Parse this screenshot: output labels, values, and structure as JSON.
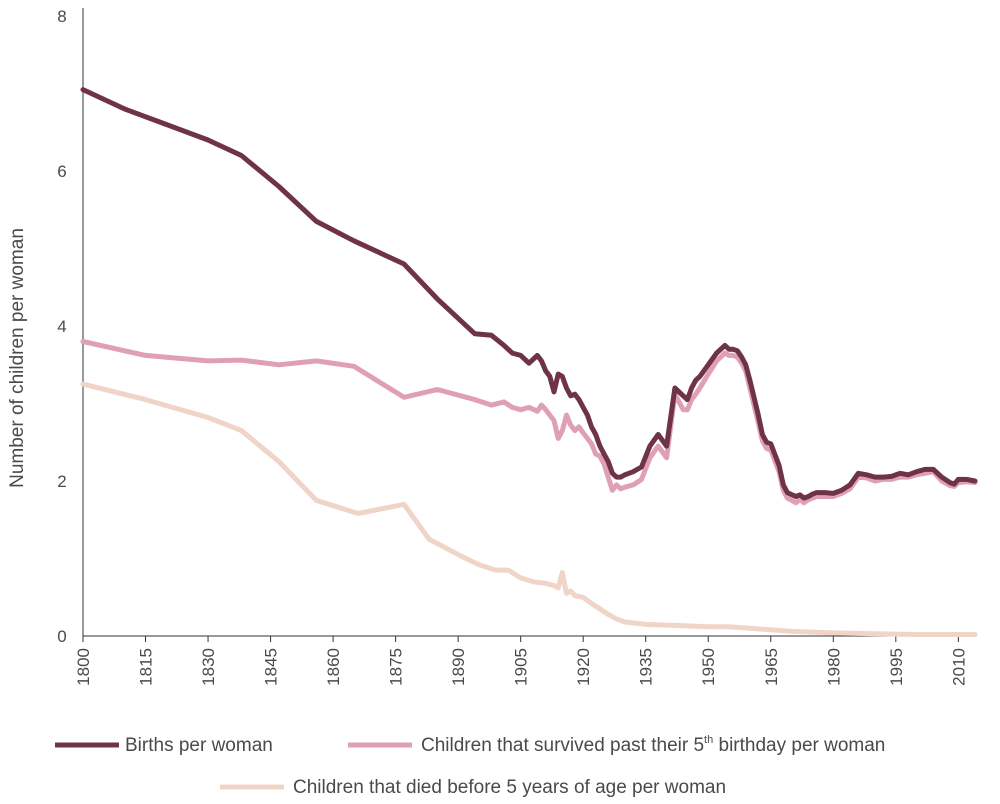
{
  "chart_data": {
    "type": "line",
    "ylabel": "Number of children per woman",
    "xlabel": "",
    "xlim": [
      1800,
      2014
    ],
    "ylim": [
      0,
      8
    ],
    "y_ticks": [
      "0",
      "2",
      "4",
      "6",
      "8"
    ],
    "x_ticks": [
      "1800",
      "1815",
      "1830",
      "1845",
      "1860",
      "1875",
      "1890",
      "1905",
      "1920",
      "1935",
      "1950",
      "1965",
      "1980",
      "1995",
      "2010"
    ],
    "grid": false,
    "legend_position": "bottom",
    "series": [
      {
        "name": "Births per woman",
        "legend_main": "Births per woman",
        "color": "#6f3347",
        "x": [
          1800,
          1810,
          1820,
          1830,
          1838,
          1847,
          1856,
          1865,
          1877,
          1885,
          1894,
          1898,
          1901,
          1903,
          1905,
          1907,
          1909,
          1910,
          1911,
          1912,
          1913,
          1914,
          1915,
          1916,
          1917,
          1918,
          1919,
          1920,
          1921,
          1922,
          1923,
          1924,
          1925,
          1926,
          1927,
          1928,
          1929,
          1930,
          1932,
          1934,
          1936,
          1938,
          1940,
          1942,
          1944,
          1945,
          1946,
          1947,
          1948,
          1950,
          1952,
          1954,
          1955,
          1956,
          1957,
          1958,
          1959,
          1960,
          1962,
          1963,
          1964,
          1965,
          1967,
          1968,
          1969,
          1971,
          1972,
          1973,
          1974,
          1975,
          1976,
          1978,
          1980,
          1982,
          1984,
          1986,
          1988,
          1990,
          1992,
          1994,
          1996,
          1998,
          2000,
          2002,
          2004,
          2006,
          2008,
          2009,
          2010,
          2012,
          2014
        ],
        "y": [
          7.05,
          6.8,
          6.6,
          6.4,
          6.2,
          5.8,
          5.35,
          5.1,
          4.8,
          4.35,
          3.9,
          3.88,
          3.75,
          3.65,
          3.62,
          3.52,
          3.62,
          3.55,
          3.42,
          3.35,
          3.15,
          3.38,
          3.35,
          3.2,
          3.1,
          3.12,
          3.05,
          2.95,
          2.85,
          2.7,
          2.6,
          2.45,
          2.35,
          2.25,
          2.1,
          2.05,
          2.05,
          2.08,
          2.12,
          2.18,
          2.45,
          2.6,
          2.45,
          3.2,
          3.1,
          3.05,
          3.2,
          3.3,
          3.35,
          3.5,
          3.65,
          3.75,
          3.7,
          3.7,
          3.68,
          3.6,
          3.5,
          3.3,
          2.85,
          2.6,
          2.5,
          2.48,
          2.2,
          1.95,
          1.85,
          1.8,
          1.82,
          1.78,
          1.8,
          1.83,
          1.85,
          1.85,
          1.84,
          1.88,
          1.95,
          2.1,
          2.08,
          2.05,
          2.05,
          2.06,
          2.1,
          2.08,
          2.12,
          2.15,
          2.15,
          2.05,
          1.98,
          1.96,
          2.02,
          2.02,
          2.0
        ]
      },
      {
        "name": "Children that survived past their 5th birthday per woman",
        "legend_main": "Children that survived past their 5",
        "legend_sup": "th",
        "legend_tail": " birthday per woman",
        "color": "#dfa0b4",
        "x": [
          1800,
          1815,
          1830,
          1838,
          1847,
          1856,
          1865,
          1877,
          1885,
          1894,
          1898,
          1901,
          1903,
          1905,
          1907,
          1909,
          1910,
          1911,
          1912,
          1913,
          1914,
          1915,
          1916,
          1917,
          1918,
          1919,
          1920,
          1921,
          1922,
          1923,
          1924,
          1925,
          1926,
          1927,
          1928,
          1929,
          1930,
          1932,
          1934,
          1936,
          1938,
          1940,
          1942,
          1944,
          1945,
          1946,
          1947,
          1948,
          1950,
          1952,
          1954,
          1955,
          1956,
          1957,
          1958,
          1959,
          1960,
          1962,
          1963,
          1964,
          1965,
          1967,
          1968,
          1969,
          1971,
          1972,
          1973,
          1974,
          1975,
          1976,
          1978,
          1980,
          1982,
          1984,
          1986,
          1988,
          1990,
          1992,
          1994,
          1996,
          1998,
          2000,
          2002,
          2004,
          2006,
          2008,
          2009,
          2010,
          2012,
          2014
        ],
        "y": [
          3.8,
          3.62,
          3.55,
          3.56,
          3.5,
          3.55,
          3.48,
          3.08,
          3.18,
          3.05,
          2.98,
          3.02,
          2.95,
          2.92,
          2.95,
          2.9,
          2.98,
          2.92,
          2.85,
          2.78,
          2.55,
          2.65,
          2.85,
          2.72,
          2.65,
          2.7,
          2.62,
          2.55,
          2.48,
          2.35,
          2.32,
          2.22,
          2.05,
          1.88,
          1.95,
          1.9,
          1.92,
          1.95,
          2.02,
          2.3,
          2.45,
          2.3,
          3.12,
          2.92,
          2.92,
          3.05,
          3.12,
          3.2,
          3.38,
          3.55,
          3.65,
          3.62,
          3.62,
          3.6,
          3.52,
          3.42,
          3.2,
          2.75,
          2.52,
          2.42,
          2.4,
          2.12,
          1.88,
          1.78,
          1.72,
          1.76,
          1.72,
          1.76,
          1.78,
          1.8,
          1.8,
          1.8,
          1.84,
          1.9,
          2.05,
          2.04,
          2.0,
          2.02,
          2.02,
          2.05,
          2.05,
          2.08,
          2.1,
          2.12,
          2.0,
          1.94,
          1.93,
          1.98,
          1.99,
          1.98
        ]
      },
      {
        "name": "Children that died before 5 years of age per woman",
        "legend_main": "Children that died before 5 years of age per woman",
        "color": "#f1d4c8",
        "x": [
          1800,
          1815,
          1830,
          1838,
          1847,
          1856,
          1866,
          1877,
          1883,
          1890,
          1895,
          1899,
          1902,
          1905,
          1908,
          1911,
          1913,
          1914,
          1915,
          1916,
          1917,
          1918,
          1920,
          1922,
          1924,
          1926,
          1928,
          1930,
          1935,
          1940,
          1945,
          1950,
          1955,
          1960,
          1965,
          1970,
          1975,
          1980,
          1990,
          2000,
          2014
        ],
        "y": [
          3.25,
          3.05,
          2.82,
          2.65,
          2.25,
          1.75,
          1.58,
          1.7,
          1.25,
          1.05,
          0.92,
          0.85,
          0.85,
          0.75,
          0.7,
          0.68,
          0.65,
          0.62,
          0.82,
          0.55,
          0.58,
          0.52,
          0.5,
          0.42,
          0.35,
          0.28,
          0.22,
          0.18,
          0.15,
          0.14,
          0.13,
          0.12,
          0.12,
          0.1,
          0.08,
          0.06,
          0.05,
          0.04,
          0.03,
          0.02,
          0.02
        ]
      }
    ]
  }
}
